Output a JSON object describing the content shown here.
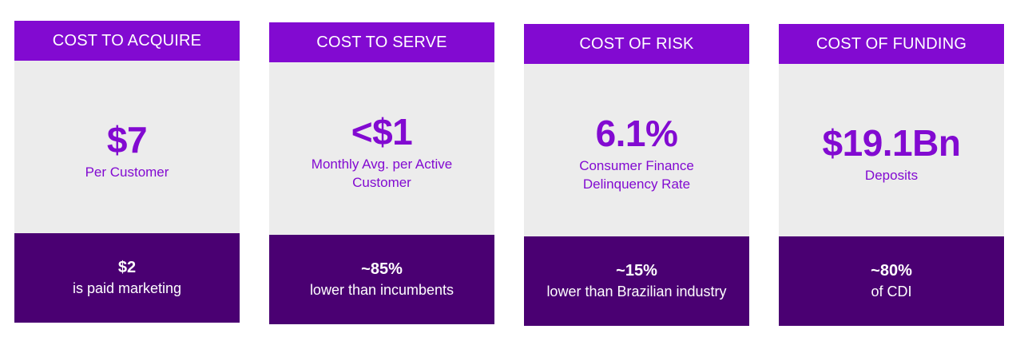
{
  "cards": [
    {
      "header": "COST TO ACQUIRE",
      "metric": "$7",
      "metric_label": "Per Customer",
      "footer_value": "$2",
      "footer_label": "is paid marketing"
    },
    {
      "header": "COST TO SERVE",
      "metric": "<$1",
      "metric_label": "Monthly Avg. per Active Customer",
      "footer_value": "~85%",
      "footer_label": "lower than incumbents"
    },
    {
      "header": "COST OF RISK",
      "metric": "6.1%",
      "metric_label": "Consumer Finance Delinquency Rate",
      "footer_value": "~15%",
      "footer_label": "lower than Brazilian industry"
    },
    {
      "header": "COST OF FUNDING",
      "metric": "$19.1Bn",
      "metric_label": "Deposits",
      "footer_value": "~80%",
      "footer_label": "of CDI"
    }
  ],
  "colors": {
    "header_bg": "#820ad1",
    "body_bg": "#ececec",
    "footer_bg": "#4a0072",
    "metric_text": "#820ad1"
  }
}
